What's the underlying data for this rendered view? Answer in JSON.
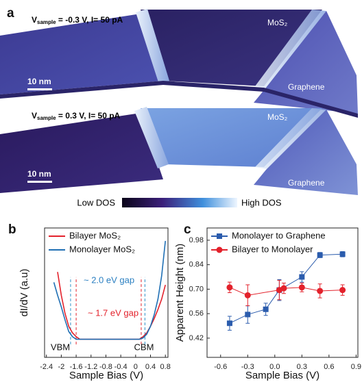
{
  "panel_a": {
    "label": "a",
    "images": [
      {
        "bias": {
          "symbol": "V",
          "subscript": "sample",
          "rest": " = -0.3 V, I= 50 pA"
        },
        "material_label": "MoS₂",
        "substrate_label": "Graphene",
        "scale_bar": "10 nm"
      },
      {
        "bias": {
          "symbol": "V",
          "subscript": "sample",
          "rest": " = 0.3 V, I= 50 pA"
        },
        "material_label": "MoS₂",
        "substrate_label": "Graphene",
        "scale_bar": "10 nm"
      }
    ],
    "colorbar": {
      "low": "Low DOS",
      "high": "High DOS"
    }
  },
  "chart_data": [
    {
      "type": "line",
      "panel_label": "b",
      "xlabel": "Sample Bias (V)",
      "ylabel": "dI/dV (a.u)",
      "xlim": [
        -2.45,
        0.87
      ],
      "ylim": [
        0,
        1
      ],
      "xticks": [
        -2.4,
        -2,
        -1.6,
        -1.2,
        -0.8,
        -0.4,
        0,
        0.4,
        0.8
      ],
      "x": [
        -2.2,
        -2.1,
        -2.0,
        -1.9,
        -1.8,
        -1.7,
        -1.6,
        -1.5,
        -1.2,
        -0.8,
        -0.4,
        0,
        0.1,
        0.2,
        0.3,
        0.4,
        0.5,
        0.6,
        0.7,
        0.8
      ],
      "series": [
        {
          "name": "Bilayer MoS₂",
          "color": "#e3212b",
          "values": [
            null,
            0.66,
            0.48,
            0.34,
            0.24,
            0.19,
            0.16,
            0.14,
            0.14,
            0.14,
            0.14,
            0.14,
            0.14,
            0.16,
            0.19,
            0.24,
            0.3,
            0.37,
            0.45,
            0.56
          ]
        },
        {
          "name": "Monolayer MoS₂",
          "color": "#1f6fb4",
          "values": [
            0.58,
            0.48,
            0.39,
            0.29,
            0.2,
            0.16,
            0.14,
            0.14,
            0.14,
            0.14,
            0.14,
            0.14,
            0.14,
            0.15,
            0.18,
            0.24,
            0.33,
            0.45,
            0.63,
            0.9
          ]
        }
      ],
      "vlines": [
        {
          "x": -1.75,
          "color": "#2a8fc8"
        },
        {
          "x": 0.25,
          "color": "#2a8fc8"
        },
        {
          "x": -1.6,
          "color": "#e3212b"
        },
        {
          "x": 0.15,
          "color": "#e3212b"
        }
      ],
      "annotations": [
        {
          "text": "~ 2.0 eV gap",
          "color": "#2a7fc1"
        },
        {
          "text": "~ 1.7 eV gap",
          "color": "#e3212b"
        },
        {
          "text": "VBM",
          "color": "#111111"
        },
        {
          "text": "CBM",
          "color": "#111111"
        }
      ],
      "legend": "upper-left"
    },
    {
      "type": "line",
      "panel_label": "c",
      "xlabel": "Sample Bias (V)",
      "ylabel": "Apparent Height (nm)",
      "xlim": [
        -0.75,
        0.92
      ],
      "ylim": [
        0.31,
        1.05
      ],
      "xticks": [
        -0.6,
        -0.3,
        {
          "value": 0,
          "label": "0.0"
        },
        0.3,
        0.6,
        0.9
      ],
      "yticks": [
        0.42,
        0.56,
        {
          "value": 0.7,
          "label": "0.70"
        },
        0.84,
        0.98
      ],
      "series": [
        {
          "name": "Monolayer to Graphene",
          "color": "#2b5cad",
          "marker": "square",
          "x": [
            -0.5,
            -0.3,
            -0.1,
            0.05,
            0.3,
            0.5,
            0.75
          ],
          "values": [
            0.505,
            0.555,
            0.585,
            0.695,
            0.77,
            0.895,
            0.9
          ],
          "errors": [
            0.04,
            0.05,
            0.035,
            0.06,
            0.03,
            0.015,
            0.015
          ]
        },
        {
          "name": "Bilayer to Monolayer",
          "color": "#e3212b",
          "marker": "circle",
          "x": [
            -0.5,
            -0.3,
            0.05,
            0.1,
            0.3,
            0.5,
            0.75
          ],
          "values": [
            0.71,
            0.665,
            0.695,
            0.705,
            0.71,
            0.69,
            0.695
          ],
          "errors": [
            0.03,
            0.06,
            0.055,
            0.03,
            0.025,
            0.04,
            0.03
          ]
        }
      ],
      "legend": "upper-left"
    }
  ]
}
